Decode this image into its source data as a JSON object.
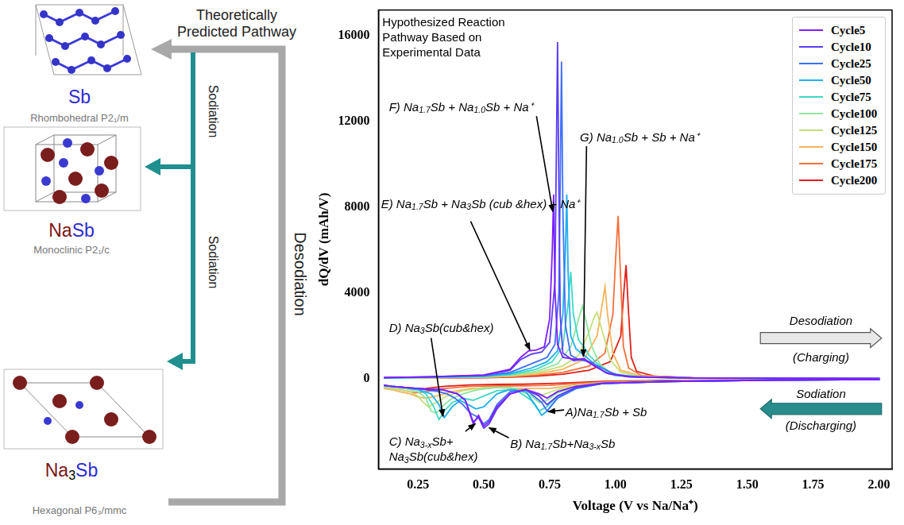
{
  "diagram": {
    "title": "Theoretically Predicted Pathway",
    "structures": [
      {
        "formula": "Sb",
        "space_group": "Rhombohedral P2₁/m"
      },
      {
        "formula": "NaSb",
        "space_group": "Monoclinic P2₁/c"
      },
      {
        "formula": "Na3Sb",
        "space_group": "Hexagonal P6₃/mmc"
      }
    ],
    "sodiation_labels": [
      "Sodiation",
      "Sodiation"
    ],
    "desodiation_label": "Desodiation"
  },
  "chart_data": {
    "type": "line",
    "title": "Hypothesized Reaction Pathway Based on Experimental Data",
    "x_label": "Voltage (V vs Na/Na⁺)",
    "y_label": "dQ/dV (mAh/V)",
    "xlim": [
      0.1,
      2.05
    ],
    "xticks": [
      0.25,
      {
        "value": 0.5,
        "label": "0.50"
      },
      0.75,
      {
        "value": 1,
        "label": "1.00"
      },
      1.25,
      {
        "value": 1.5,
        "label": "1.50"
      },
      1.75,
      {
        "value": 2,
        "label": "2.00"
      }
    ],
    "ylim": [
      -4200,
      17200
    ],
    "yticks": [
      0,
      4000,
      8000,
      12000,
      16000
    ],
    "grid": false,
    "legend": "upper right",
    "annotations": [
      "A)Na1.7Sb + Sb",
      "B) Na1.7Sb+Na3-xSb",
      "C) Na3-xSb+ Na3Sb(cub&hex)",
      "D) Na3Sb(cub&hex)",
      "E) Na1.7Sb + Na3Sb (cub &hex) + Na⁺",
      "F) Na1.7Sb + Na1.0Sb + Na⁺",
      "G) Na1.0Sb + Sb + Na⁺"
    ],
    "direction_labels": [
      {
        "label": "Desodiation",
        "sublabel": "(Charging)"
      },
      {
        "label": "Sodiation",
        "sublabel": "(Discharging)"
      }
    ],
    "series": [
      {
        "name": "Cycle5",
        "color": "#7f1fff",
        "x": [
          0.12,
          0.3,
          0.5,
          0.6,
          0.64,
          0.67,
          0.7,
          0.73,
          0.75,
          0.76,
          0.765,
          0.77,
          0.78,
          0.8,
          0.85,
          0.88,
          0.92,
          0.97,
          1.05,
          1.3,
          1.6,
          2.0,
          2.0,
          1.6,
          1.2,
          0.95,
          0.85,
          0.78,
          0.74,
          0.71,
          0.66,
          0.6,
          0.55,
          0.52,
          0.5,
          0.48,
          0.46,
          0.43,
          0.4,
          0.37,
          0.34,
          0.3,
          0.25,
          0.2,
          0.15,
          0.12
        ],
        "values": [
          60,
          100,
          180,
          450,
          1000,
          1300,
          1350,
          1500,
          2800,
          6000,
          8600,
          4200,
          1600,
          1000,
          900,
          950,
          600,
          250,
          100,
          40,
          20,
          10,
          -30,
          -60,
          -120,
          -200,
          -350,
          -600,
          -900,
          -700,
          -500,
          -700,
          -1300,
          -2000,
          -2200,
          -1700,
          -2100,
          -1000,
          -700,
          -600,
          -500,
          -500,
          -450,
          -400,
          -350,
          -300
        ]
      },
      {
        "name": "Cycle10",
        "color": "#5b3cf5",
        "x": [
          0.12,
          0.3,
          0.5,
          0.6,
          0.64,
          0.68,
          0.72,
          0.75,
          0.77,
          0.775,
          0.78,
          0.785,
          0.79,
          0.8,
          0.84,
          0.88,
          0.92,
          0.97,
          1.05,
          1.3,
          1.6,
          2.0,
          2.0,
          1.6,
          1.2,
          0.95,
          0.85,
          0.78,
          0.74,
          0.71,
          0.66,
          0.6,
          0.55,
          0.52,
          0.5,
          0.48,
          0.46,
          0.43,
          0.4,
          0.37,
          0.34,
          0.3,
          0.25,
          0.2,
          0.15,
          0.12
        ],
        "values": [
          60,
          100,
          170,
          400,
          900,
          1150,
          1250,
          1700,
          4500,
          10000,
          15700,
          9000,
          3000,
          1200,
          850,
          900,
          600,
          250,
          100,
          40,
          20,
          10,
          -30,
          -60,
          -120,
          -220,
          -400,
          -800,
          -1200,
          -800,
          -500,
          -700,
          -1400,
          -2100,
          -2300,
          -1800,
          -2000,
          -1000,
          -700,
          -600,
          -500,
          -500,
          -450,
          -400,
          -350,
          -300
        ]
      },
      {
        "name": "Cycle25",
        "color": "#3f6ff5",
        "x": [
          0.12,
          0.3,
          0.5,
          0.6,
          0.66,
          0.7,
          0.74,
          0.77,
          0.785,
          0.79,
          0.795,
          0.8,
          0.81,
          0.83,
          0.86,
          0.9,
          0.95,
          1.0,
          1.1,
          1.3,
          1.6,
          2.0,
          2.0,
          1.6,
          1.2,
          0.95,
          0.85,
          0.78,
          0.74,
          0.72,
          0.66,
          0.6,
          0.55,
          0.52,
          0.5,
          0.48,
          0.45,
          0.42,
          0.39,
          0.36,
          0.33,
          0.3,
          0.25,
          0.2,
          0.15,
          0.12
        ],
        "values": [
          50,
          90,
          150,
          300,
          600,
          800,
          1000,
          1600,
          4000,
          9000,
          14800,
          8000,
          2500,
          1100,
          900,
          800,
          500,
          200,
          80,
          40,
          20,
          10,
          -30,
          -60,
          -120,
          -220,
          -450,
          -900,
          -1500,
          -1100,
          -500,
          -600,
          -1200,
          -1900,
          -2100,
          -1800,
          -1600,
          -1200,
          -900,
          -700,
          -600,
          -550,
          -450,
          -400,
          -350,
          -300
        ]
      },
      {
        "name": "Cycle50",
        "color": "#1fb0f0",
        "x": [
          0.12,
          0.3,
          0.5,
          0.6,
          0.68,
          0.74,
          0.78,
          0.8,
          0.81,
          0.815,
          0.82,
          0.83,
          0.85,
          0.88,
          0.92,
          0.96,
          1.0,
          1.1,
          1.3,
          1.6,
          2.0,
          2.0,
          1.6,
          1.2,
          0.95,
          0.85,
          0.78,
          0.74,
          0.72,
          0.7,
          0.66,
          0.6,
          0.55,
          0.5,
          0.47,
          0.44,
          0.41,
          0.38,
          0.35,
          0.33,
          0.3,
          0.25,
          0.2,
          0.15,
          0.12
        ],
        "values": [
          40,
          80,
          130,
          250,
          500,
          800,
          1300,
          3000,
          6000,
          8600,
          5000,
          2000,
          1400,
          1100,
          700,
          300,
          150,
          70,
          40,
          20,
          10,
          -30,
          -60,
          -120,
          -220,
          -450,
          -900,
          -1500,
          -1700,
          -1300,
          -600,
          -500,
          -700,
          -1300,
          -1400,
          -1200,
          -1000,
          -1300,
          -1800,
          -1200,
          -700,
          -500,
          -400,
          -350,
          -300
        ]
      },
      {
        "name": "Cycle75",
        "color": "#3fd8c4",
        "x": [
          0.12,
          0.3,
          0.5,
          0.6,
          0.7,
          0.76,
          0.8,
          0.82,
          0.83,
          0.84,
          0.86,
          0.88,
          0.9,
          0.94,
          0.98,
          1.05,
          1.2,
          1.5,
          2.0,
          2.0,
          1.6,
          1.2,
          0.95,
          0.85,
          0.78,
          0.74,
          0.71,
          0.68,
          0.62,
          0.55,
          0.5,
          0.46,
          0.42,
          0.38,
          0.35,
          0.33,
          0.31,
          0.28,
          0.25,
          0.2,
          0.15,
          0.12
        ],
        "values": [
          40,
          70,
          110,
          200,
          450,
          800,
          1500,
          3500,
          5000,
          3000,
          1800,
          1500,
          1100,
          600,
          250,
          100,
          50,
          20,
          10,
          -30,
          -60,
          -120,
          -220,
          -400,
          -800,
          -1300,
          -1500,
          -1000,
          -500,
          -550,
          -800,
          -1000,
          -900,
          -1100,
          -1500,
          -1900,
          -1300,
          -700,
          -500,
          -400,
          -350,
          -300
        ]
      },
      {
        "name": "Cycle100",
        "color": "#8de6a0",
        "x": [
          0.12,
          0.3,
          0.5,
          0.6,
          0.7,
          0.78,
          0.83,
          0.86,
          0.875,
          0.89,
          0.91,
          0.94,
          0.98,
          1.05,
          1.2,
          1.5,
          2.0,
          2.0,
          1.6,
          1.2,
          0.95,
          0.85,
          0.78,
          0.74,
          0.71,
          0.68,
          0.62,
          0.55,
          0.48,
          0.42,
          0.38,
          0.35,
          0.32,
          0.3,
          0.28,
          0.25,
          0.2,
          0.15,
          0.12
        ],
        "values": [
          40,
          60,
          100,
          180,
          350,
          700,
          1500,
          2800,
          3400,
          2600,
          1500,
          700,
          300,
          120,
          50,
          20,
          10,
          -30,
          -60,
          -110,
          -200,
          -350,
          -650,
          -1000,
          -1100,
          -800,
          -450,
          -400,
          -500,
          -700,
          -900,
          -1200,
          -1600,
          -1500,
          -900,
          -600,
          -450,
          -400,
          -350
        ]
      },
      {
        "name": "Cycle125",
        "color": "#c6df7a",
        "x": [
          0.12,
          0.3,
          0.5,
          0.6,
          0.7,
          0.8,
          0.86,
          0.9,
          0.92,
          0.93,
          0.95,
          0.98,
          1.02,
          1.1,
          1.3,
          1.6,
          2.0,
          2.0,
          1.6,
          1.2,
          0.95,
          0.85,
          0.78,
          0.72,
          0.68,
          0.6,
          0.5,
          0.42,
          0.36,
          0.32,
          0.29,
          0.27,
          0.25,
          0.22,
          0.18,
          0.15,
          0.12
        ],
        "values": [
          30,
          50,
          90,
          150,
          280,
          600,
          1100,
          2200,
          2900,
          3100,
          2200,
          900,
          300,
          100,
          40,
          20,
          10,
          -30,
          -60,
          -110,
          -180,
          -300,
          -500,
          -750,
          -650,
          -400,
          -400,
          -550,
          -800,
          -1100,
          -1300,
          -1100,
          -800,
          -600,
          -500,
          -450,
          -400
        ]
      },
      {
        "name": "Cycle150",
        "color": "#f5b45a",
        "x": [
          0.12,
          0.3,
          0.5,
          0.6,
          0.7,
          0.8,
          0.88,
          0.93,
          0.95,
          0.96,
          0.97,
          0.99,
          1.02,
          1.1,
          1.3,
          1.6,
          2.0,
          2.0,
          1.6,
          1.2,
          0.95,
          0.85,
          0.75,
          0.65,
          0.55,
          0.45,
          0.38,
          0.32,
          0.28,
          0.25,
          0.22,
          0.18,
          0.15,
          0.12
        ],
        "values": [
          30,
          50,
          80,
          130,
          230,
          450,
          900,
          2000,
          3500,
          4300,
          3000,
          1200,
          400,
          120,
          40,
          20,
          10,
          -30,
          -50,
          -100,
          -170,
          -280,
          -450,
          -450,
          -400,
          -450,
          -600,
          -800,
          -900,
          -850,
          -700,
          -600,
          -500,
          -450
        ]
      },
      {
        "name": "Cycle175",
        "color": "#f5703a",
        "x": [
          0.12,
          0.3,
          0.5,
          0.6,
          0.7,
          0.8,
          0.9,
          0.96,
          0.99,
          1.0,
          1.01,
          1.02,
          1.03,
          1.05,
          1.1,
          1.3,
          1.6,
          2.0,
          2.0,
          1.6,
          1.2,
          0.95,
          0.85,
          0.75,
          0.65,
          0.55,
          0.45,
          0.35,
          0.28,
          0.24,
          0.2,
          0.16,
          0.12
        ],
        "values": [
          30,
          40,
          60,
          100,
          170,
          300,
          600,
          1200,
          3000,
          5500,
          7600,
          4500,
          1500,
          500,
          150,
          40,
          20,
          10,
          -30,
          -50,
          -90,
          -150,
          -220,
          -300,
          -330,
          -330,
          -350,
          -450,
          -600,
          -650,
          -550,
          -450,
          -400
        ]
      },
      {
        "name": "Cycle200",
        "color": "#e0201a",
        "x": [
          0.12,
          0.3,
          0.5,
          0.6,
          0.7,
          0.8,
          0.9,
          0.98,
          1.02,
          1.03,
          1.04,
          1.05,
          1.06,
          1.08,
          1.15,
          1.3,
          1.6,
          2.0,
          2.0,
          1.6,
          1.2,
          0.95,
          0.85,
          0.75,
          0.65,
          0.55,
          0.45,
          0.35,
          0.28,
          0.24,
          0.2,
          0.16,
          0.12
        ],
        "values": [
          30,
          40,
          50,
          80,
          130,
          220,
          400,
          800,
          2000,
          3800,
          5300,
          3000,
          1000,
          350,
          120,
          40,
          20,
          10,
          -20,
          -40,
          -70,
          -120,
          -170,
          -220,
          -250,
          -260,
          -280,
          -350,
          -450,
          -480,
          -420,
          -380,
          -350
        ]
      }
    ]
  }
}
